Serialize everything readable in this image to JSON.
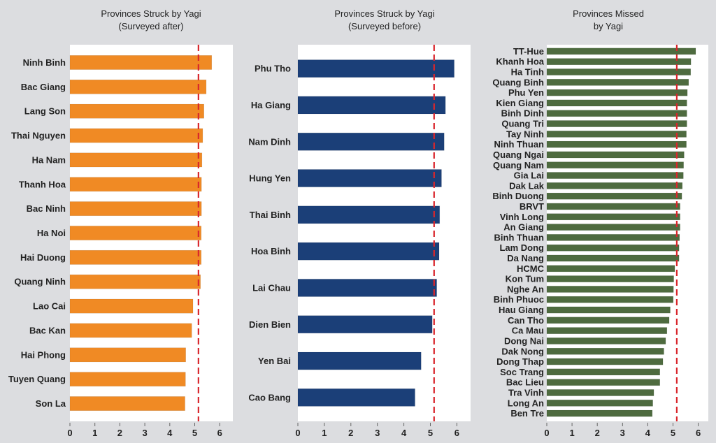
{
  "chart_data": [
    {
      "type": "bar",
      "orientation": "horizontal",
      "title": "Provinces Struck by Yagi",
      "subtitle": "(Surveyed after)",
      "color": "#f08a24",
      "reference_line": {
        "value": 5.15,
        "color": "#d9262c",
        "style": "dashed"
      },
      "xlim": [
        0,
        6.5
      ],
      "xticks": [
        "0",
        "1",
        "2",
        "3",
        "4",
        "5",
        "6"
      ],
      "categories": [
        "Ninh Binh",
        "Bac Giang",
        "Lang Son",
        "Thai Nguyen",
        "Ha Nam",
        "Thanh Hoa",
        "Bac Ninh",
        "Ha Noi",
        "Hai Duong",
        "Quang Ninh",
        "Lao Cai",
        "Bac Kan",
        "Hai Phong",
        "Tuyen Quang",
        "Son La"
      ],
      "values": [
        5.68,
        5.46,
        5.37,
        5.32,
        5.29,
        5.27,
        5.27,
        5.26,
        5.26,
        5.23,
        4.93,
        4.88,
        4.64,
        4.63,
        4.61
      ],
      "grid": false
    },
    {
      "type": "bar",
      "orientation": "horizontal",
      "title": "Provinces Struck by Yagi",
      "subtitle": "(Surveyed before)",
      "color": "#1b3f78",
      "reference_line": {
        "value": 5.14,
        "color": "#d9262c",
        "style": "dashed"
      },
      "xlim": [
        0,
        6.5
      ],
      "xticks": [
        "0",
        "1",
        "2",
        "3",
        "4",
        "5",
        "6"
      ],
      "categories": [
        "Phu Tho",
        "Ha Giang",
        "Nam Dinh",
        "Hung Yen",
        "Thai Binh",
        "Hoa Binh",
        "Lai Chau",
        "Dien Bien",
        "Yen Bai",
        "Cao Bang"
      ],
      "values": [
        5.9,
        5.57,
        5.52,
        5.42,
        5.35,
        5.33,
        5.24,
        5.07,
        4.65,
        4.42
      ],
      "grid": false
    },
    {
      "type": "bar",
      "orientation": "horizontal",
      "title": "Provinces Missed",
      "subtitle": "by Yagi",
      "color": "#4e6b3f",
      "reference_line": {
        "value": 5.15,
        "color": "#d9262c",
        "style": "dashed"
      },
      "xlim": [
        0,
        6.5
      ],
      "xticks": [
        "0",
        "1",
        "2",
        "3",
        "4",
        "5",
        "6"
      ],
      "categories": [
        "TT-Hue",
        "Khanh Hoa",
        "Ha Tinh",
        "Quang Binh",
        "Phu Yen",
        "Kien Giang",
        "Binh Dinh",
        "Quang Tri",
        "Tay Ninh",
        "Ninh Thuan",
        "Quang Ngai",
        "Quang Nam",
        "Gia Lai",
        "Dak Lak",
        "Binh Duong",
        "BRVT",
        "Vinh Long",
        "An Giang",
        "Binh Thuan",
        "Lam Dong",
        "Da Nang",
        "HCMC",
        "Kon Tum",
        "Nghe An",
        "Binh Phuoc",
        "Hau Giang",
        "Can Tho",
        "Ca Mau",
        "Dong Nai",
        "Dak Nong",
        "Dong Thap",
        "Soc Trang",
        "Bac Lieu",
        "Tra Vinh",
        "Long An",
        "Ben Tre"
      ],
      "values": [
        5.9,
        5.71,
        5.7,
        5.62,
        5.57,
        5.55,
        5.55,
        5.55,
        5.53,
        5.53,
        5.44,
        5.42,
        5.41,
        5.37,
        5.35,
        5.28,
        5.28,
        5.28,
        5.26,
        5.24,
        5.24,
        5.07,
        5.03,
        5.02,
        5.01,
        4.89,
        4.85,
        4.76,
        4.71,
        4.64,
        4.6,
        4.48,
        4.48,
        4.24,
        4.2,
        4.18
      ],
      "grid": false
    }
  ]
}
